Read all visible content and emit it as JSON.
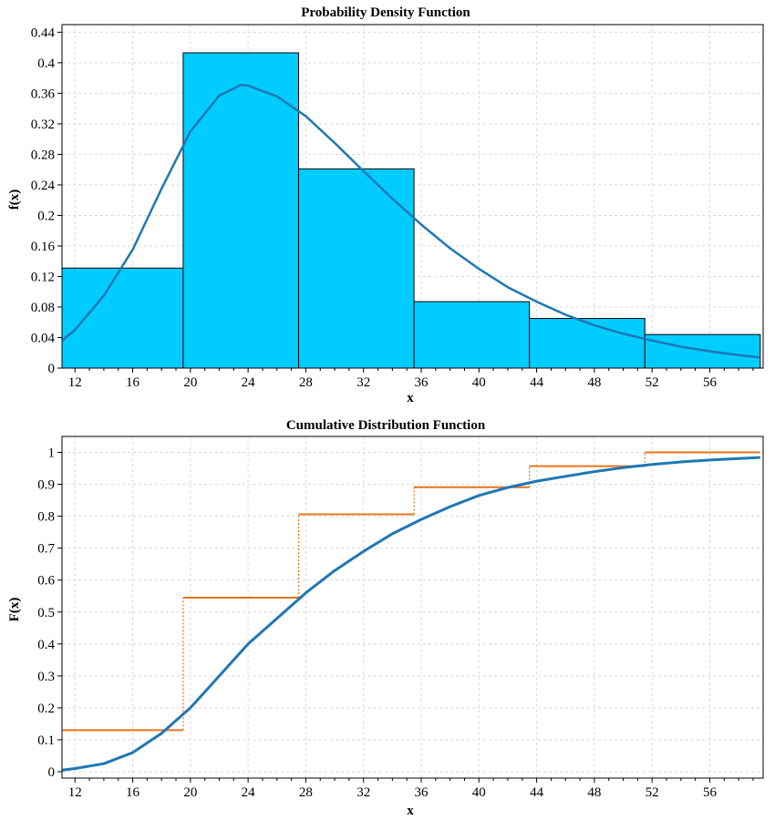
{
  "chart_data": [
    {
      "type": "bar",
      "title": "Probability Density Function",
      "xlabel": "x",
      "ylabel": "f(x)",
      "xlim": [
        11.1,
        59.7
      ],
      "ylim": [
        0,
        0.45
      ],
      "xticks": [
        12,
        16,
        20,
        24,
        28,
        32,
        36,
        40,
        44,
        48,
        52,
        56
      ],
      "yticks": [
        0,
        0.04,
        0.08,
        0.12,
        0.16,
        0.2,
        0.24,
        0.28,
        0.32,
        0.36,
        0.4,
        0.44
      ],
      "grid": true,
      "bar_color": "#00ccff",
      "bar_edge_color": "#000000",
      "bins": [
        {
          "x0": 11.1,
          "x1": 19.5,
          "value": 0.131
        },
        {
          "x0": 19.5,
          "x1": 27.5,
          "value": 0.413
        },
        {
          "x0": 27.5,
          "x1": 35.5,
          "value": 0.261
        },
        {
          "x0": 35.5,
          "x1": 43.5,
          "value": 0.087
        },
        {
          "x0": 43.5,
          "x1": 51.5,
          "value": 0.065
        },
        {
          "x0": 51.5,
          "x1": 59.5,
          "value": 0.044
        }
      ],
      "curve": {
        "color": "#1f77b4",
        "x": [
          11.1,
          12,
          14,
          16,
          18,
          20,
          22,
          23.5,
          24,
          26,
          28,
          30,
          32,
          34,
          36,
          38,
          40,
          42,
          44,
          46,
          48,
          50,
          52,
          54,
          56,
          58,
          59.5
        ],
        "y": [
          0.036,
          0.05,
          0.095,
          0.155,
          0.235,
          0.31,
          0.357,
          0.371,
          0.37,
          0.356,
          0.33,
          0.295,
          0.258,
          0.222,
          0.188,
          0.157,
          0.13,
          0.106,
          0.087,
          0.07,
          0.056,
          0.045,
          0.036,
          0.028,
          0.022,
          0.017,
          0.014
        ]
      }
    },
    {
      "type": "line",
      "title": "Cumulative Distribution Function",
      "xlabel": "x",
      "ylabel": "F(x)",
      "xlim": [
        11.1,
        59.7
      ],
      "ylim": [
        -0.02,
        1.05
      ],
      "xticks": [
        12,
        16,
        20,
        24,
        28,
        32,
        36,
        40,
        44,
        48,
        52,
        56
      ],
      "yticks": [
        0,
        0.1,
        0.2,
        0.3,
        0.4,
        0.5,
        0.6,
        0.7,
        0.8,
        0.9,
        1
      ],
      "grid": true,
      "series": [
        {
          "kind": "step",
          "color": "#e5741c",
          "steps": [
            {
              "x0": 11.1,
              "x1": 19.5,
              "y": 0.13
            },
            {
              "x0": 19.5,
              "x1": 27.5,
              "y": 0.545
            },
            {
              "x0": 27.5,
              "x1": 35.5,
              "y": 0.806
            },
            {
              "x0": 35.5,
              "x1": 43.5,
              "y": 0.891
            },
            {
              "x0": 43.5,
              "x1": 51.5,
              "y": 0.957
            },
            {
              "x0": 51.5,
              "x1": 59.5,
              "y": 1.0
            }
          ]
        },
        {
          "kind": "curve",
          "color": "#1f77b4",
          "x": [
            11.1,
            12,
            14,
            16,
            18,
            20,
            22,
            24,
            26,
            28,
            30,
            32,
            34,
            36,
            38,
            40,
            42,
            44,
            46,
            48,
            50,
            52,
            54,
            56,
            58,
            59.5
          ],
          "y": [
            0.005,
            0.01,
            0.025,
            0.06,
            0.12,
            0.2,
            0.3,
            0.4,
            0.48,
            0.56,
            0.63,
            0.69,
            0.745,
            0.79,
            0.83,
            0.865,
            0.89,
            0.91,
            0.925,
            0.94,
            0.952,
            0.962,
            0.97,
            0.976,
            0.981,
            0.984
          ]
        }
      ]
    }
  ]
}
